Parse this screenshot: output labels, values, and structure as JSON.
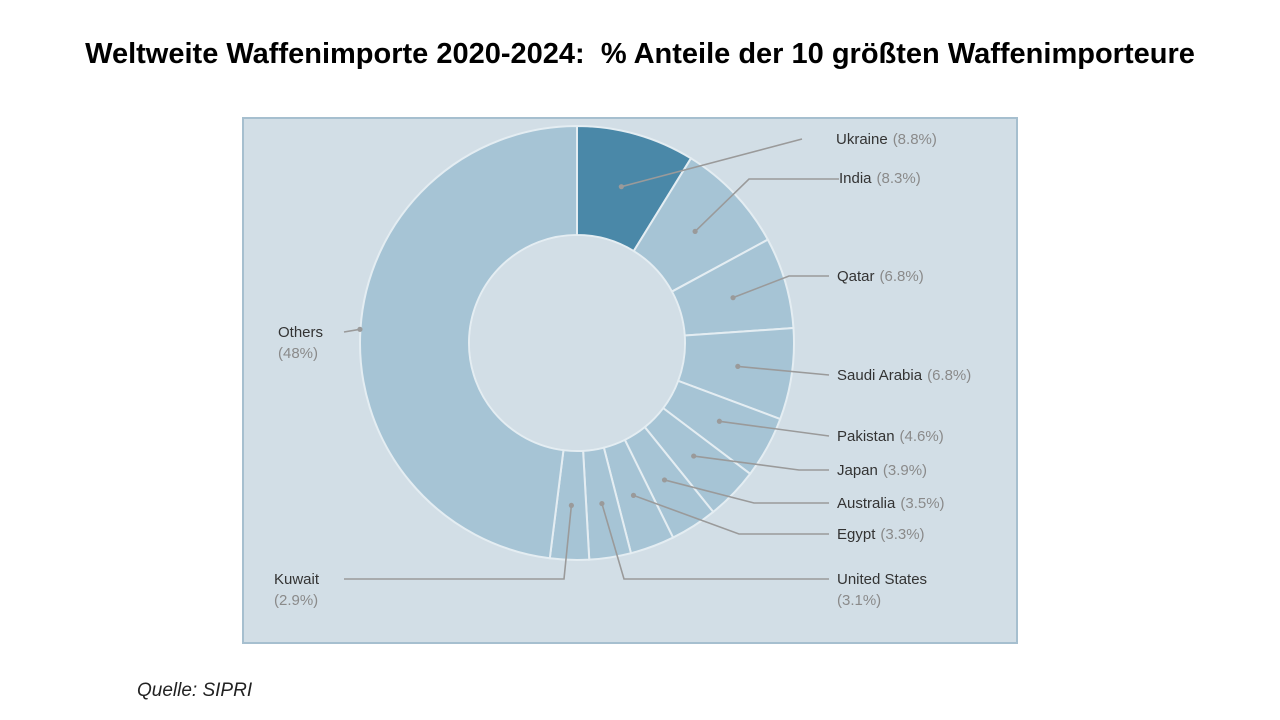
{
  "title": "Weltweite Waffenimporte 2020-2024:  % Anteile der 10 größten Waffenimporteure",
  "source": "Quelle: SIPRI",
  "colors": {
    "panel_bg": "#d2dee6",
    "slice": "#a6c4d5",
    "slice_highlight": "#4a88a8",
    "slice_border": "#e4edf2",
    "hole": "#d2dee6",
    "leader": "#9a9a9a",
    "label": "#333333",
    "value": "#8a8a8a"
  },
  "chart_data": {
    "type": "pie",
    "variant": "donut",
    "slices": [
      {
        "label": "Ukraine",
        "value_text": "(8.8%)",
        "value": 8.8,
        "highlight": true
      },
      {
        "label": "India",
        "value_text": "(8.3%)",
        "value": 8.3
      },
      {
        "label": "Qatar",
        "value_text": "(6.8%)",
        "value": 6.8
      },
      {
        "label": "Saudi Arabia",
        "value_text": "(6.8%)",
        "value": 6.8
      },
      {
        "label": "Pakistan",
        "value_text": "(4.6%)",
        "value": 4.6
      },
      {
        "label": "Japan",
        "value_text": "(3.9%)",
        "value": 3.9
      },
      {
        "label": "Australia",
        "value_text": "(3.5%)",
        "value": 3.5
      },
      {
        "label": "Egypt",
        "value_text": "(3.3%)",
        "value": 3.3
      },
      {
        "label": "United States",
        "value_text": "(3.1%)",
        "value": 3.1
      },
      {
        "label": "Kuwait",
        "value_text": "(2.9%)",
        "value": 2.9
      },
      {
        "label": "Others",
        "value_text": "(48%)",
        "value": 48
      }
    ]
  }
}
